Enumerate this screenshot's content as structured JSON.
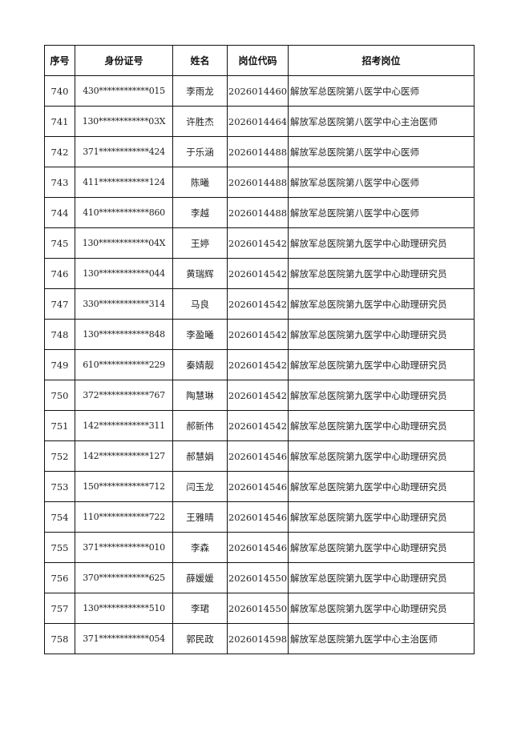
{
  "headers": [
    "序号",
    "身份证号",
    "姓名",
    "岗位代码",
    "招考岗位"
  ],
  "rows": [
    [
      "740",
      "430************015",
      "李雨龙",
      "2026014460",
      "解放军总医院第八医学中心医师"
    ],
    [
      "741",
      "130************03X",
      "许胜杰",
      "2026014464",
      "解放军总医院第八医学中心主治医师"
    ],
    [
      "742",
      "371************424",
      "于乐涵",
      "2026014488",
      "解放军总医院第八医学中心医师"
    ],
    [
      "743",
      "411************124",
      "陈曦",
      "2026014488",
      "解放军总医院第八医学中心医师"
    ],
    [
      "744",
      "410************860",
      "李越",
      "2026014488",
      "解放军总医院第八医学中心医师"
    ],
    [
      "745",
      "130************04X",
      "王婷",
      "2026014542",
      "解放军总医院第九医学中心助理研究员"
    ],
    [
      "746",
      "130************044",
      "黄瑞辉",
      "2026014542",
      "解放军总医院第九医学中心助理研究员"
    ],
    [
      "747",
      "330************314",
      "马良",
      "2026014542",
      "解放军总医院第九医学中心助理研究员"
    ],
    [
      "748",
      "130************848",
      "李盈曦",
      "2026014542",
      "解放军总医院第九医学中心助理研究员"
    ],
    [
      "749",
      "610************229",
      "秦婧靓",
      "2026014542",
      "解放军总医院第九医学中心助理研究员"
    ],
    [
      "750",
      "372************767",
      "陶慧琳",
      "2026014542",
      "解放军总医院第九医学中心助理研究员"
    ],
    [
      "751",
      "142************311",
      "郝新伟",
      "2026014542",
      "解放军总医院第九医学中心助理研究员"
    ],
    [
      "752",
      "142************127",
      "郝慧娟",
      "2026014546",
      "解放军总医院第九医学中心助理研究员"
    ],
    [
      "753",
      "150************712",
      "闫玉龙",
      "2026014546",
      "解放军总医院第九医学中心助理研究员"
    ],
    [
      "754",
      "110************722",
      "王雅晴",
      "2026014546",
      "解放军总医院第九医学中心助理研究员"
    ],
    [
      "755",
      "371************010",
      "李森",
      "2026014546",
      "解放军总医院第九医学中心助理研究员"
    ],
    [
      "756",
      "370************625",
      "薛媛媛",
      "2026014550",
      "解放军总医院第九医学中心助理研究员"
    ],
    [
      "757",
      "130************510",
      "李珺",
      "2026014550",
      "解放军总医院第九医学中心助理研究员"
    ],
    [
      "758",
      "371************054",
      "郭民政",
      "2026014598",
      "解放军总医院第九医学中心主治医师"
    ]
  ]
}
